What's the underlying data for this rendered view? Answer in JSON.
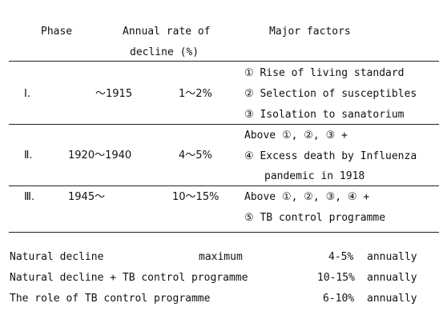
{
  "table": {
    "headers": {
      "phase": "Phase",
      "rate_line1": "Annual rate of",
      "rate_line2": "decline (%)",
      "factors": "Major factors"
    },
    "rows": [
      {
        "phase": "Ⅰ.",
        "period": "～1915",
        "rate": "1～2%",
        "factors": [
          "① Rise of living standard",
          "② Selection of susceptibles",
          "③ Isolation to sanatorium"
        ]
      },
      {
        "phase": "Ⅱ.",
        "period": "1920～1940",
        "rate": "4～5%",
        "factors": [
          "Above ①, ②, ③ +",
          "④ Excess death by Influenza",
          "pandemic in 1918"
        ]
      },
      {
        "phase": "Ⅲ.",
        "period": "1945～",
        "rate": "10～15%",
        "factors": [
          "Above ①, ②, ③, ④ +",
          "⑤ TB control programme"
        ]
      }
    ]
  },
  "summary": [
    {
      "label": "Natural decline",
      "qualifier": "maximum",
      "value": "4-5%",
      "unit": "annually"
    },
    {
      "label": "Natural decline + TB control programme",
      "qualifier": "",
      "value": "10-15%",
      "unit": "annually"
    },
    {
      "label": "The role of TB control programme",
      "qualifier": "",
      "value": "6-10%",
      "unit": "annually"
    }
  ]
}
